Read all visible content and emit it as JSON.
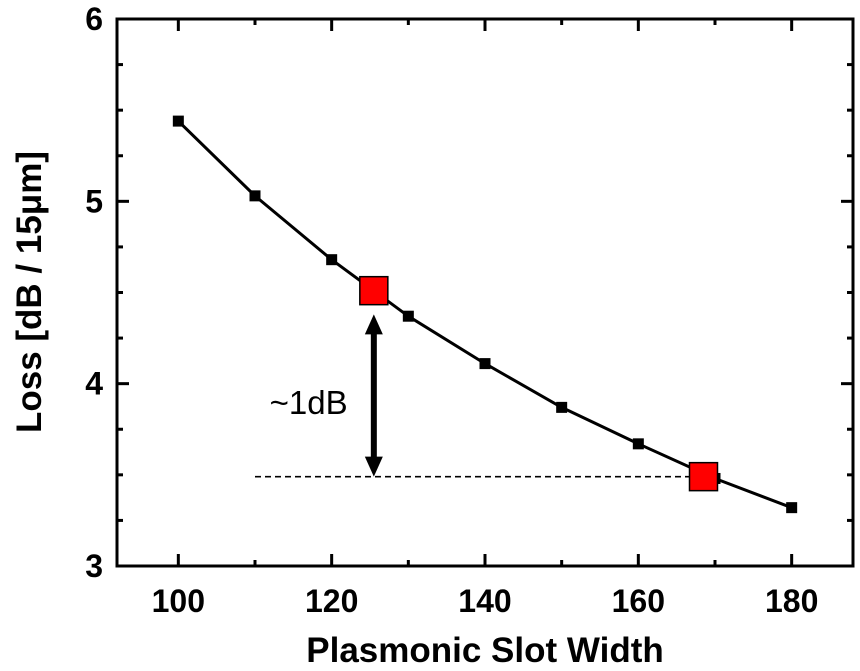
{
  "chart_data": {
    "type": "line",
    "xlabel": "Plasmonic Slot Width",
    "ylabel": "Loss [dB / 15μm]",
    "xlim": [
      92,
      188
    ],
    "ylim": [
      3,
      6
    ],
    "xticks": [
      100,
      120,
      140,
      160,
      180
    ],
    "xtick_labels": [
      "100",
      "120",
      "140",
      "160",
      "180"
    ],
    "yticks": [
      3,
      4,
      5,
      6
    ],
    "ytick_labels": [
      "3",
      "4",
      "5",
      "6"
    ],
    "grid": false,
    "legend": null,
    "series": [
      {
        "x": [
          100,
          110,
          120,
          130,
          140,
          150,
          160,
          170,
          180
        ],
        "y": [
          5.44,
          5.03,
          4.68,
          4.37,
          4.11,
          3.87,
          3.67,
          3.48,
          3.32
        ],
        "line_color": "#000000",
        "marker": "square",
        "marker_color": "#000000"
      }
    ],
    "highlighted_points": [
      {
        "x": 125.5,
        "y": 4.51,
        "color": "#ff0000"
      },
      {
        "x": 168.5,
        "y": 3.49,
        "color": "#ff0000"
      }
    ],
    "reference_line": {
      "style": "dashed",
      "y": 3.49,
      "x_from": 110,
      "x_to": 168.5
    },
    "annotation": {
      "text": "~1dB",
      "arrow_x": 125.5,
      "arrow_from_y": 3.49,
      "arrow_to_y": 4.38,
      "text_x": 117,
      "text_y": 3.9
    }
  }
}
